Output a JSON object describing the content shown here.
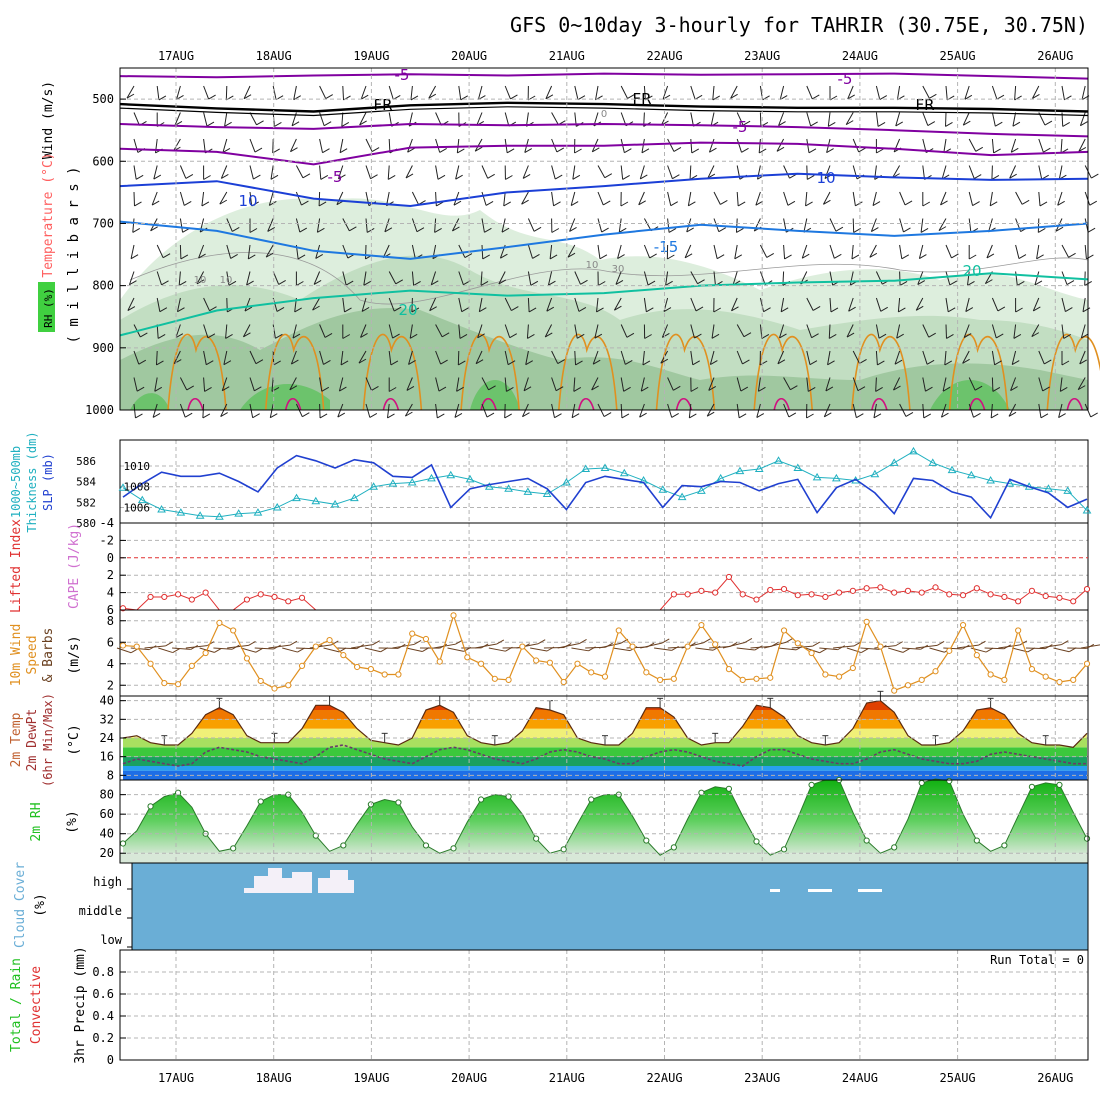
{
  "title": "GFS 0~10day 3-hourly for TAHRIR (30.75E, 30.75N)",
  "dates": [
    "17AUG",
    "18AUG",
    "19AUG",
    "20AUG",
    "21AUG",
    "22AUG",
    "23AUG",
    "24AUG",
    "25AUG",
    "26AUG"
  ],
  "colors": {
    "purple": "#8000a0",
    "blue_dark": "#1b3fd6",
    "blue_mid": "#1e78e0",
    "teal": "#10c0a0",
    "orange": "#e09020",
    "magenta": "#d01080",
    "cyan": "#20b0c0",
    "slp_blue": "#2040d0",
    "red": "#e03030",
    "green": "#20c020",
    "cloud_blue": "#6aaed6"
  },
  "chart_data": [
    {
      "panel": "upper-air",
      "type": "contour",
      "ylabels": [
        "Wind (m/s)",
        "Temperature (°C)",
        "RH (%)",
        "( m i l l i b a r s )"
      ],
      "yticks": [
        "500",
        "600",
        "700",
        "800",
        "900",
        "1000"
      ],
      "ylim": [
        450,
        1000
      ],
      "contour_labels": [
        "-5",
        "-5",
        "-5",
        "FR",
        "FR",
        "FR",
        "-5",
        "5",
        "10",
        "10",
        "-15",
        "20",
        "20",
        "10",
        "10",
        "10",
        "30",
        "0"
      ],
      "isotherms": [
        {
          "name": "-5 upper",
          "level": [
            463,
            465,
            462,
            460,
            462,
            459,
            461,
            460,
            459,
            463,
            467
          ]
        },
        {
          "name": "FR",
          "level": [
            508,
            515,
            520,
            510,
            506,
            508,
            512,
            514,
            514,
            516,
            520
          ]
        },
        {
          "name": "-5 lower",
          "level": [
            540,
            545,
            548,
            540,
            542,
            540,
            542,
            545,
            550,
            556,
            560
          ]
        },
        {
          "name": "5",
          "level": [
            580,
            585,
            605,
            578,
            575,
            575,
            570,
            572,
            580,
            590,
            585
          ]
        },
        {
          "name": "10",
          "level": [
            640,
            632,
            660,
            672,
            650,
            640,
            628,
            620,
            626,
            630,
            628
          ]
        },
        {
          "name": "15",
          "level": [
            697,
            712,
            744,
            757,
            738,
            718,
            702,
            712,
            720,
            712,
            700
          ]
        },
        {
          "name": "20",
          "level": [
            880,
            840,
            820,
            808,
            816,
            812,
            800,
            795,
            792,
            780,
            790
          ]
        }
      ]
    },
    {
      "panel": "thickness-slp",
      "type": "line",
      "ylabels": [
        "1000~500mb",
        "Thickness (dm)",
        "SLP (mb)"
      ],
      "yticks_left": [
        "586",
        "584",
        "582",
        "580"
      ],
      "yticks_right": [
        "1010",
        "1008",
        "1006"
      ],
      "series": [
        {
          "name": "Thickness (dm)",
          "ylim": [
            580,
            588
          ],
          "values": [
            583.4,
            582.2,
            581.3,
            581.0,
            580.7,
            580.6,
            580.9,
            581.0,
            581.5,
            582.4,
            582.1,
            581.8,
            582.4,
            583.5,
            583.8,
            583.9,
            584.3,
            584.6,
            584.2,
            583.5,
            583.3,
            583.0,
            582.8,
            583.9,
            585.2,
            585.3,
            584.8,
            584.1,
            583.2,
            582.5,
            583.1,
            584.3,
            585.0,
            585.2,
            586.0,
            585.3,
            584.4,
            584.3,
            584.1,
            584.7,
            585.8,
            586.9,
            585.8,
            585.1,
            584.6,
            584.1,
            583.8,
            583.5,
            583.3,
            583.1,
            581.2
          ]
        },
        {
          "name": "SLP (mb)",
          "ylim": [
            1004.5,
            1012.5
          ],
          "values": [
            1007.0,
            1008.3,
            1009.4,
            1009.0,
            1009.0,
            1009.3,
            1008.5,
            1007.5,
            1009.8,
            1011.0,
            1010.5,
            1009.8,
            1010.6,
            1010.3,
            1009.0,
            1008.9,
            1010.1,
            1006.0,
            1007.8,
            1008.2,
            1008.5,
            1008.8,
            1007.8,
            1005.8,
            1008.4,
            1009.0,
            1008.7,
            1008.4,
            1006.0,
            1008.1,
            1008.0,
            1008.5,
            1008.4,
            1007.6,
            1008.3,
            1008.7,
            1005.5,
            1007.9,
            1008.7,
            1007.4,
            1005.4,
            1008.8,
            1008.6,
            1007.5,
            1007.0,
            1005.0,
            1008.7,
            1008.0,
            1007.4,
            1006.0,
            1006.8
          ]
        }
      ]
    },
    {
      "panel": "stability",
      "type": "line",
      "ylabels": [
        "Lifted Index",
        "CAPE (J/kg)"
      ],
      "yticks": [
        "-4",
        "-2",
        "0",
        "2",
        "4",
        "6"
      ],
      "ylim": [
        -4,
        6
      ],
      "zero_line": 0,
      "series": [
        {
          "name": "Lifted Index",
          "values": [
            5.8,
            6,
            4.5,
            4.5,
            4.2,
            4.8,
            4,
            6,
            6,
            4.8,
            4.2,
            4.5,
            5,
            4.6,
            6,
            6,
            6,
            6,
            6,
            6,
            6,
            6,
            6,
            6,
            6,
            6,
            6,
            6,
            6,
            6,
            6,
            6,
            6,
            6,
            6,
            6,
            6,
            6,
            6,
            6,
            4.2,
            4.2,
            3.8,
            4,
            2.2,
            4.2,
            4.8,
            3.7,
            3.6,
            4.3,
            4.2,
            4.5,
            4,
            3.8,
            3.5,
            3.4,
            4,
            3.8,
            4,
            3.4,
            4.2,
            4.3,
            3.5,
            4.2,
            4.5,
            5,
            3.8,
            4.4,
            4.6,
            5,
            3.6
          ]
        }
      ]
    },
    {
      "panel": "surface-wind",
      "type": "line",
      "ylabels": [
        "10m Wind",
        "Speed",
        "& Barbs",
        "(m/s)"
      ],
      "yticks": [
        "2",
        "4",
        "6",
        "8"
      ],
      "ylim": [
        1,
        9
      ],
      "series": [
        {
          "name": "10m Wind Speed (m/s)",
          "values": [
            5.7,
            5.6,
            4.0,
            2.2,
            2.1,
            3.8,
            5.0,
            7.8,
            7.1,
            4.5,
            2.4,
            1.7,
            2.0,
            3.8,
            5.6,
            6.2,
            4.8,
            3.7,
            3.5,
            3.0,
            3.0,
            6.8,
            6.3,
            4.2,
            8.5,
            4.6,
            4.0,
            2.6,
            2.5,
            5.6,
            4.3,
            4.1,
            2.3,
            4.0,
            3.2,
            2.8,
            7.1,
            5.6,
            3.2,
            2.5,
            2.6,
            5.6,
            7.6,
            5.8,
            3.5,
            2.5,
            2.6,
            2.7,
            7.1,
            5.9,
            5.0,
            3.0,
            2.8,
            3.6,
            7.9,
            5.6,
            1.5,
            2.0,
            2.5,
            3.3,
            5.2,
            7.6,
            4.8,
            3.0,
            2.5,
            7.1,
            3.5,
            2.8,
            2.3,
            2.5,
            4.0
          ]
        }
      ]
    },
    {
      "panel": "temperature",
      "type": "area",
      "ylabels": [
        "2m Temp",
        "2m DewPt",
        "(6hr Min/Max)",
        "(°C)"
      ],
      "yticks": [
        "8",
        "16",
        "24",
        "32",
        "40"
      ],
      "ylim": [
        6,
        42
      ],
      "series": [
        {
          "name": "2m Temp",
          "values": [
            24,
            25,
            22,
            21,
            21,
            26,
            34,
            37,
            34,
            25,
            22,
            22,
            22,
            28,
            38,
            38,
            35,
            28,
            23,
            22,
            21,
            24,
            36,
            38,
            35,
            25,
            22,
            21,
            22,
            27,
            37,
            36,
            34,
            24,
            22,
            21,
            21,
            26,
            37,
            37,
            33,
            24,
            21,
            22,
            22,
            29,
            38,
            37,
            33,
            25,
            22,
            21,
            22,
            28,
            39,
            40,
            35,
            25,
            21,
            21,
            22,
            27,
            36,
            37,
            34,
            26,
            22,
            21,
            21,
            20,
            26
          ]
        },
        {
          "name": "2m DewPt",
          "values": [
            13,
            15,
            14,
            13,
            12,
            13,
            18,
            20,
            19,
            18,
            16,
            15,
            14,
            13,
            16,
            20,
            21,
            19,
            17,
            15,
            14,
            13,
            16,
            19,
            20,
            19,
            17,
            15,
            14,
            13,
            15,
            18,
            19,
            18,
            16,
            15,
            13,
            13,
            16,
            18,
            19,
            18,
            16,
            14,
            13,
            12,
            16,
            19,
            19,
            17,
            15,
            14,
            13,
            13,
            15,
            18,
            19,
            17,
            15,
            14,
            13,
            13,
            14,
            17,
            18,
            17,
            16,
            15,
            14,
            13,
            13
          ]
        }
      ]
    },
    {
      "panel": "humidity",
      "type": "area",
      "ylabels": [
        "2m RH",
        "(%)"
      ],
      "yticks": [
        "20",
        "40",
        "60",
        "80"
      ],
      "ylim": [
        10,
        95
      ],
      "series": [
        {
          "name": "2m RH (%)",
          "values": [
            30,
            43,
            68,
            78,
            82,
            67,
            40,
            22,
            25,
            48,
            73,
            80,
            80,
            62,
            38,
            22,
            28,
            50,
            70,
            75,
            72,
            47,
            28,
            20,
            25,
            52,
            75,
            80,
            78,
            60,
            35,
            20,
            24,
            50,
            75,
            80,
            80,
            58,
            33,
            18,
            26,
            55,
            82,
            88,
            86,
            58,
            32,
            18,
            24,
            56,
            90,
            95,
            95,
            62,
            33,
            20,
            26,
            55,
            92,
            96,
            94,
            60,
            33,
            22,
            28,
            58,
            88,
            92,
            90,
            62,
            35
          ]
        }
      ]
    },
    {
      "panel": "cloud-cover",
      "type": "heatmap",
      "ylabels": [
        "Cloud Cover",
        "(%)"
      ],
      "levels": [
        "high",
        "middle",
        "low"
      ],
      "high_cover_blocks": [
        "17AUG 18Z",
        "18AUG 00Z",
        "18AUG 06Z",
        "18AUG 12Z",
        "18AUG 18Z",
        "23AUG 00Z",
        "23AUG 12Z",
        "23AUG 18Z",
        "24AUG 00Z"
      ]
    },
    {
      "panel": "precip",
      "type": "bar",
      "ylabels": [
        "3hr Precip (mm)",
        "Total / Rain",
        "Convective"
      ],
      "yticks": [
        "0",
        "0.2",
        "0.4",
        "0.6",
        "0.8"
      ],
      "ylim": [
        0,
        1
      ],
      "run_total": "Run Total = 0",
      "values": []
    }
  ]
}
